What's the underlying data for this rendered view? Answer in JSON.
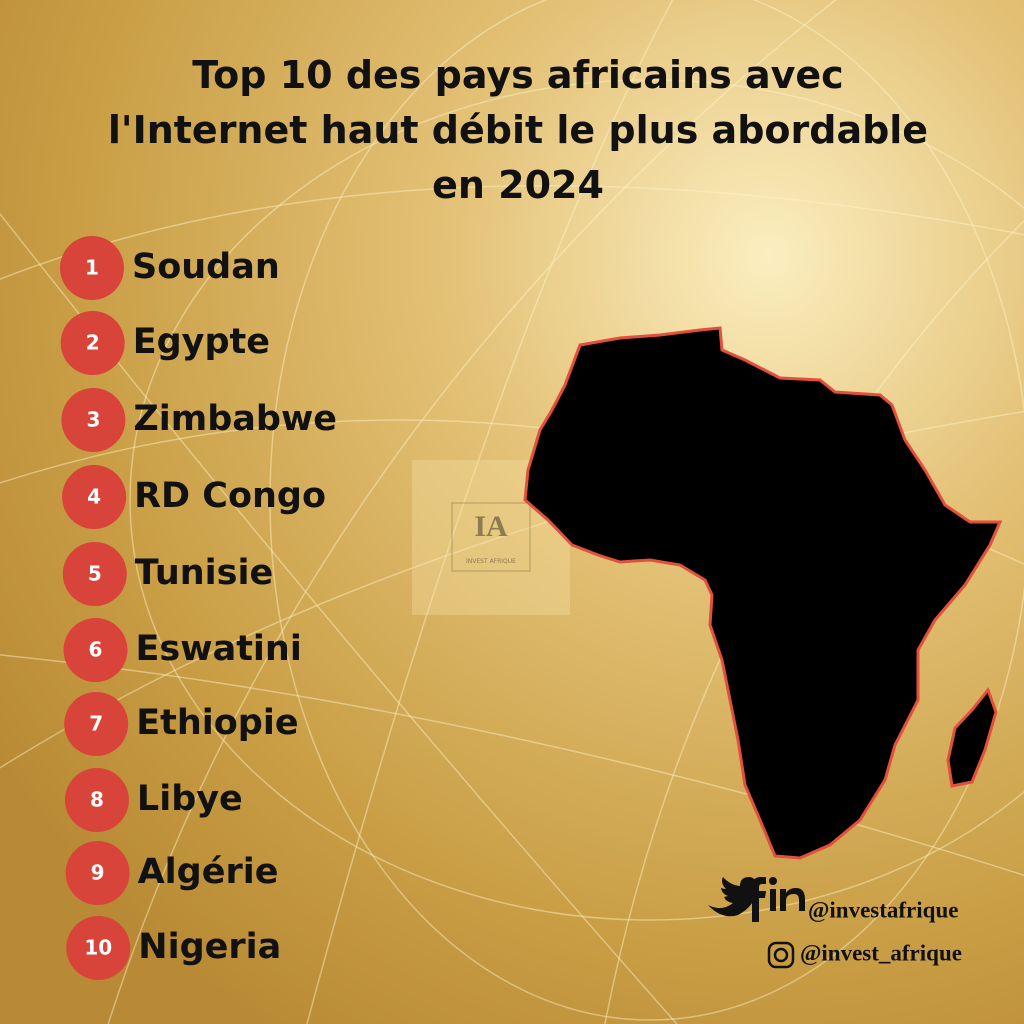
{
  "header": {
    "title_lines": [
      "Top 10 des pays africains avec",
      "l'Internet haut débit le plus abordable",
      "en 2024"
    ]
  },
  "list": {
    "items": [
      {
        "rank": 1,
        "name": "Soudan"
      },
      {
        "rank": 2,
        "name": "Egypte"
      },
      {
        "rank": 3,
        "name": "Zimbabwe"
      },
      {
        "rank": 4,
        "name": "RD Congo"
      },
      {
        "rank": 5,
        "name": "Tunisie"
      },
      {
        "rank": 6,
        "name": "Eswatini"
      },
      {
        "rank": 7,
        "name": "Ethiopie"
      },
      {
        "rank": 8,
        "name": "Libye"
      },
      {
        "rank": 9,
        "name": "Algérie"
      },
      {
        "rank": 10,
        "name": "Nigeria"
      }
    ]
  },
  "logo": {
    "mark": "IA",
    "caption": "INVEST AFRIQUE"
  },
  "social": {
    "handle_main": "@investafrique",
    "handle_instagram": "@invest_afrique"
  }
}
